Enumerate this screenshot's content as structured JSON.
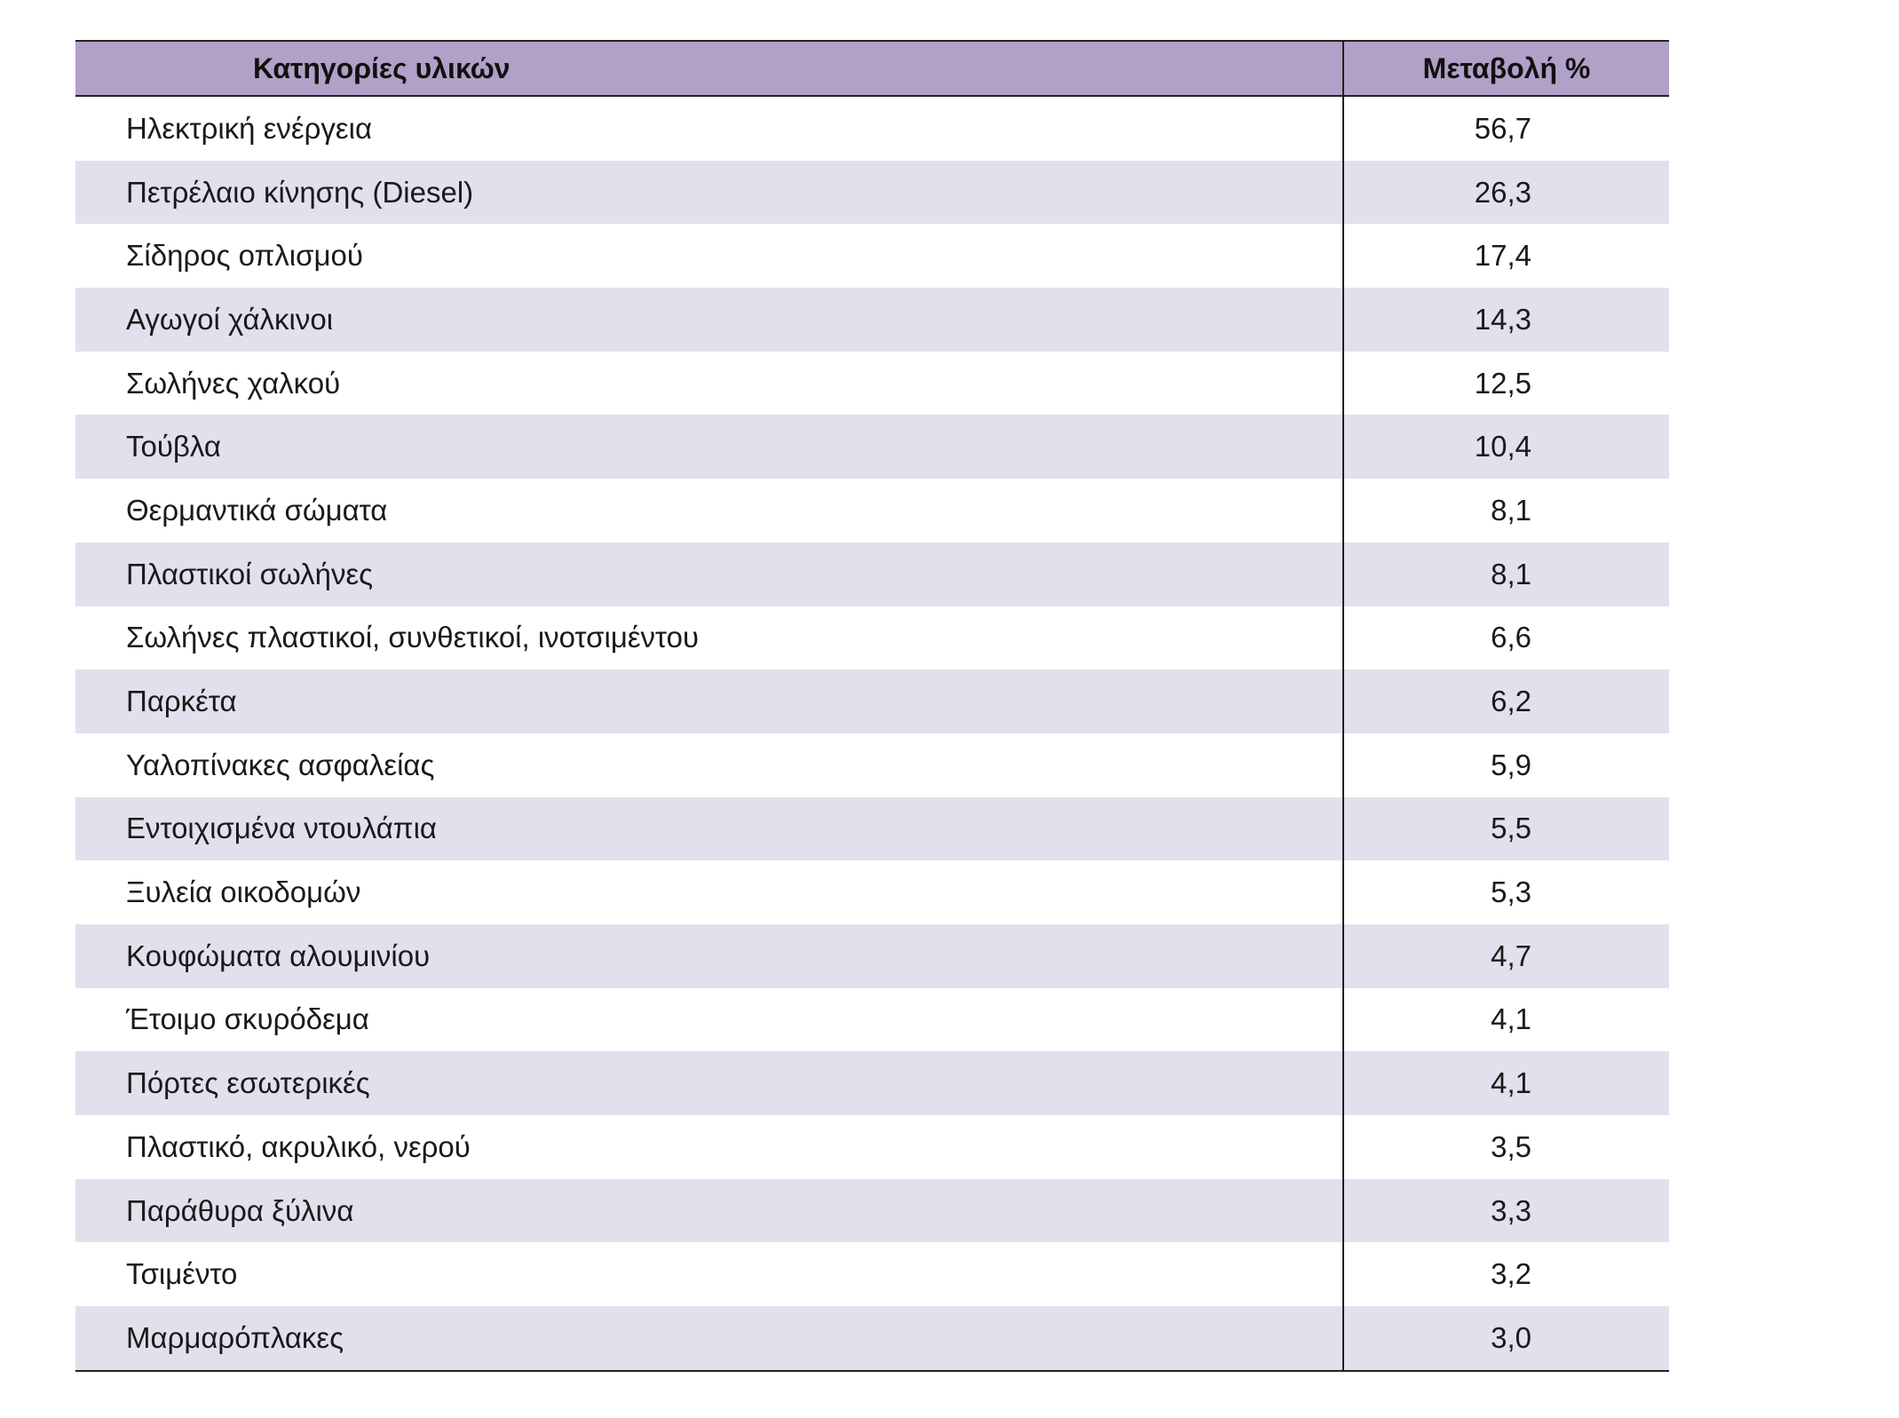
{
  "table": {
    "headers": {
      "category": "Κατηγορίες υλικών",
      "change": "Μεταβολή %"
    },
    "rows": [
      {
        "category": "Ηλεκτρική ενέργεια",
        "change": "56,7"
      },
      {
        "category": "Πετρέλαιο κίνησης (Diesel)",
        "change": "26,3"
      },
      {
        "category": "Σίδηρος οπλισμού",
        "change": "17,4"
      },
      {
        "category": "Αγωγοί χάλκινοι",
        "change": "14,3"
      },
      {
        "category": "Σωλήνες χαλκού",
        "change": "12,5"
      },
      {
        "category": "Τούβλα",
        "change": "10,4"
      },
      {
        "category": "Θερμαντικά σώματα",
        "change": "8,1"
      },
      {
        "category": "Πλαστικοί σωλήνες",
        "change": "8,1"
      },
      {
        "category": "Σωλήνες πλαστικοί, συνθετικοί, ινοτσιμέντου",
        "change": "6,6"
      },
      {
        "category": "Παρκέτα",
        "change": "6,2"
      },
      {
        "category": "Υαλοπίνακες ασφαλείας",
        "change": "5,9"
      },
      {
        "category": "Εντοιχισμένα ντουλάπια",
        "change": "5,5"
      },
      {
        "category": "Ξυλεία οικοδομών",
        "change": "5,3"
      },
      {
        "category": "Κουφώματα αλουμινίου",
        "change": "4,7"
      },
      {
        "category": "Έτοιμο σκυρόδεμα",
        "change": "4,1"
      },
      {
        "category": "Πόρτες εσωτερικές",
        "change": "4,1"
      },
      {
        "category": "Πλαστικό, ακρυλικό, νερού",
        "change": "3,5"
      },
      {
        "category": "Παράθυρα ξύλινα",
        "change": "3,3"
      },
      {
        "category": "Τσιμέντο",
        "change": "3,2"
      },
      {
        "category": "Μαρμαρόπλακες",
        "change": "3,0"
      }
    ]
  },
  "colors": {
    "header_bg": "#b1a0c7",
    "stripe_bg": "#e4dfec",
    "rule": "#222222"
  }
}
